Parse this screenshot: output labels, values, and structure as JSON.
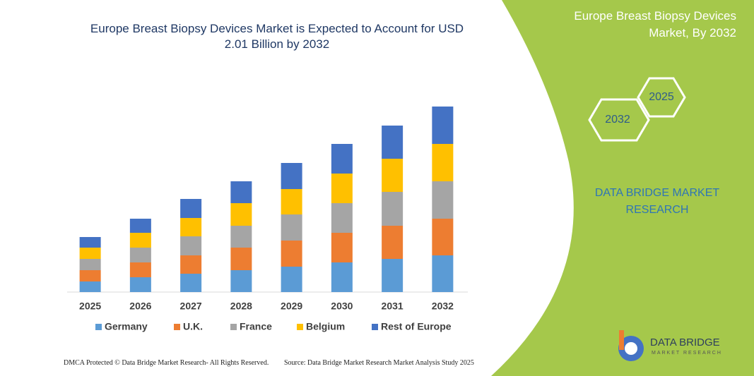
{
  "chart_data": {
    "type": "bar",
    "stacked": true,
    "title": "Europe Breast Biopsy Devices Market is Expected to Account for USD 2.01 Billion by 2032",
    "categories": [
      "2025",
      "2026",
      "2027",
      "2028",
      "2029",
      "2030",
      "2031",
      "2032"
    ],
    "series": [
      {
        "name": "Germany",
        "color": "#5b9bd5",
        "values": [
          15,
          21,
          26,
          31,
          36,
          42,
          47,
          52
        ]
      },
      {
        "name": "U.K.",
        "color": "#ed7d31",
        "values": [
          16,
          21,
          26,
          32,
          37,
          42,
          47,
          52
        ]
      },
      {
        "name": "France",
        "color": "#a5a5a5",
        "values": [
          16,
          21,
          27,
          31,
          37,
          42,
          48,
          53
        ]
      },
      {
        "name": "Belgium",
        "color": "#ffc000",
        "values": [
          16,
          21,
          26,
          32,
          36,
          42,
          47,
          53
        ]
      },
      {
        "name": "Rest of Europe",
        "color": "#4472c4",
        "values": [
          15,
          20,
          27,
          31,
          37,
          42,
          47,
          53
        ]
      }
    ]
  },
  "panel": {
    "title": "Europe Breast Biopsy Devices Market, By 2032",
    "hexagons": [
      "2025",
      "2032"
    ],
    "brand": "DATA BRIDGE MARKET RESEARCH"
  },
  "footer": {
    "copyright": "DMCA Protected © Data Bridge Market Research- All Rights Reserved.",
    "source": "Source: Data Bridge Market Research Market Analysis Study 2025"
  },
  "logo": {
    "name": "DATA BRIDGE",
    "tagline": "MARKET RESEARCH"
  }
}
